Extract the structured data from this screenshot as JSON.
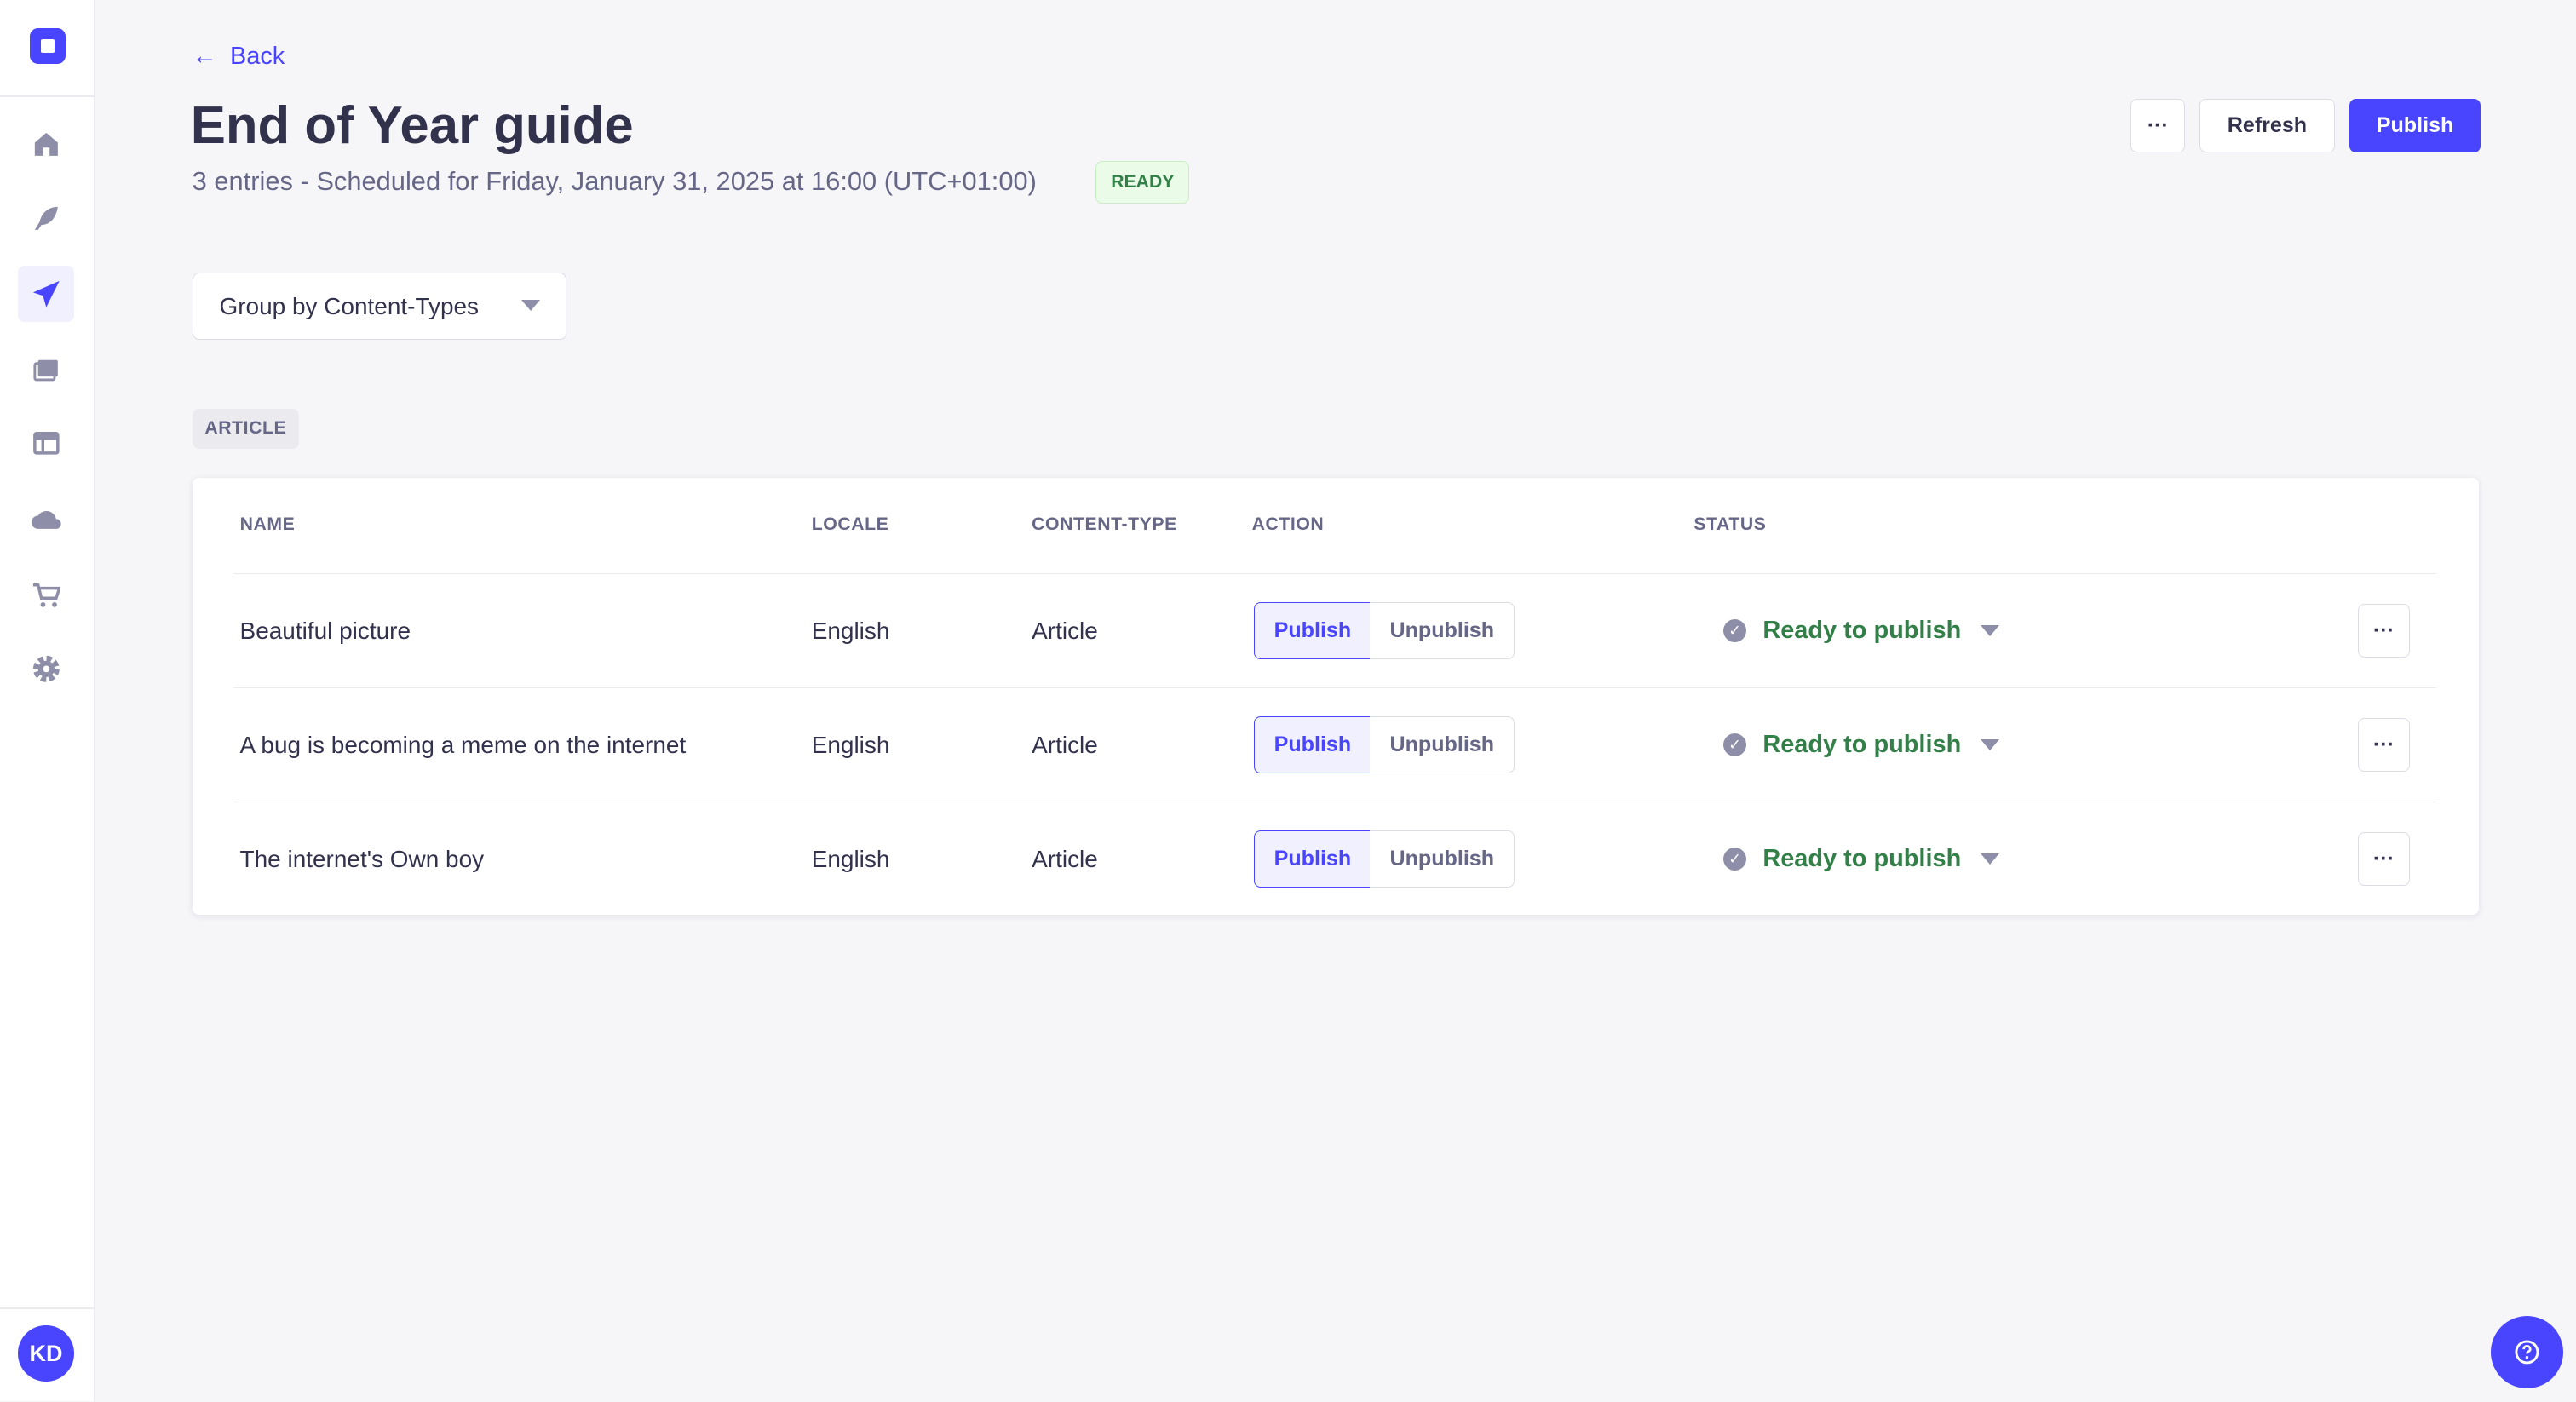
{
  "sidebar": {
    "items": [
      {
        "name": "home",
        "icon": "home-icon"
      },
      {
        "name": "content-manager",
        "icon": "feather-icon"
      },
      {
        "name": "releases",
        "icon": "paper-plane-icon",
        "active": true
      },
      {
        "name": "media-library",
        "icon": "images-icon"
      },
      {
        "name": "content-type-builder",
        "icon": "layout-icon"
      },
      {
        "name": "cloud",
        "icon": "cloud-icon"
      },
      {
        "name": "marketplace",
        "icon": "cart-icon"
      },
      {
        "name": "settings",
        "icon": "gear-icon"
      }
    ],
    "avatar": "KD"
  },
  "header": {
    "back": "Back",
    "title": "End of Year guide",
    "subtitle": "3 entries - Scheduled for Friday, January 31, 2025 at 16:00 (UTC+01:00)",
    "badge": "READY",
    "more": "···",
    "refresh": "Refresh",
    "publish": "Publish"
  },
  "group_select": {
    "value": "Group by Content-Types"
  },
  "group_label": "ARTICLE",
  "table": {
    "columns": [
      "NAME",
      "LOCALE",
      "CONTENT-TYPE",
      "ACTION",
      "STATUS"
    ],
    "rows": [
      {
        "name": "Beautiful picture",
        "locale": "English",
        "content_type": "Article",
        "action_publish": "Publish",
        "action_unpublish": "Unpublish",
        "selected_action": "Publish",
        "status": "Ready to publish",
        "more": "···"
      },
      {
        "name": "A bug is becoming a meme on the internet",
        "locale": "English",
        "content_type": "Article",
        "action_publish": "Publish",
        "action_unpublish": "Unpublish",
        "selected_action": "Publish",
        "status": "Ready to publish",
        "more": "···"
      },
      {
        "name": "The internet's Own boy",
        "locale": "English",
        "content_type": "Article",
        "action_publish": "Publish",
        "action_unpublish": "Unpublish",
        "selected_action": "Publish",
        "status": "Ready to publish",
        "more": "···"
      }
    ]
  },
  "colors": {
    "primary": "#4945ff",
    "success": "#328048",
    "text": "#32324d",
    "muted": "#666687"
  }
}
